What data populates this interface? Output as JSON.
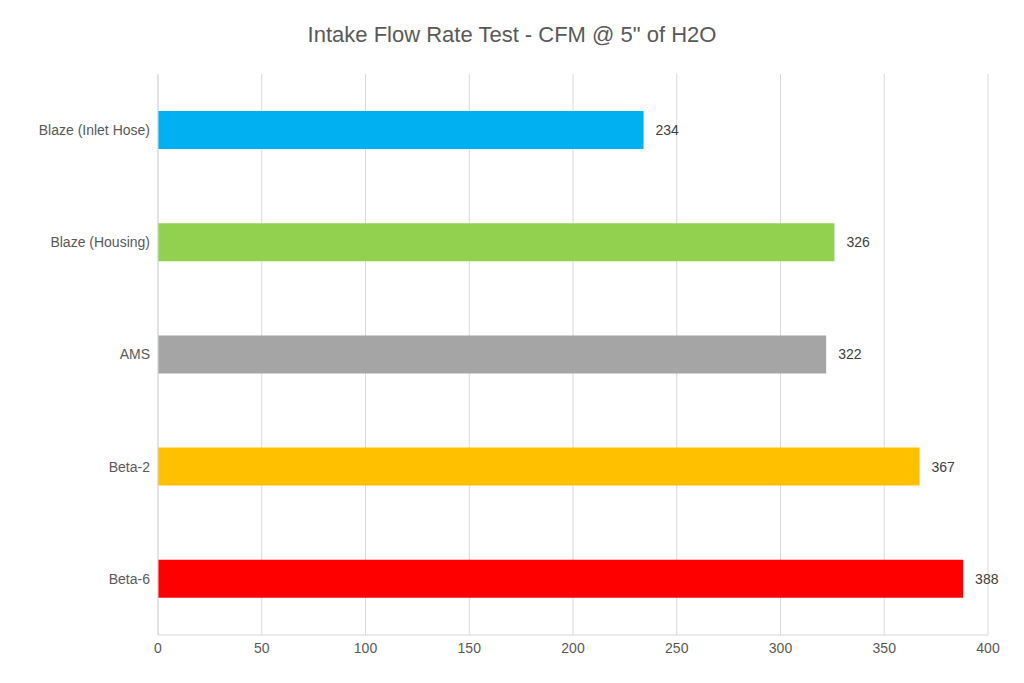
{
  "chart_data": {
    "type": "bar",
    "title": "Intake Flow Rate Test - CFM @ 5\" of H2O",
    "orientation": "horizontal",
    "categories": [
      "Blaze (Inlet Hose)",
      "Blaze (Housing)",
      "AMS",
      "Beta-2",
      "Beta-6"
    ],
    "values": [
      234,
      326,
      322,
      367,
      388
    ],
    "colors": [
      "#00b0f0",
      "#92d050",
      "#a5a5a5",
      "#ffc000",
      "#ff0000"
    ],
    "xlim": [
      0,
      400
    ],
    "xticks": [
      0,
      50,
      100,
      150,
      200,
      250,
      300,
      350,
      400
    ],
    "grid": true,
    "data_labels": true
  }
}
